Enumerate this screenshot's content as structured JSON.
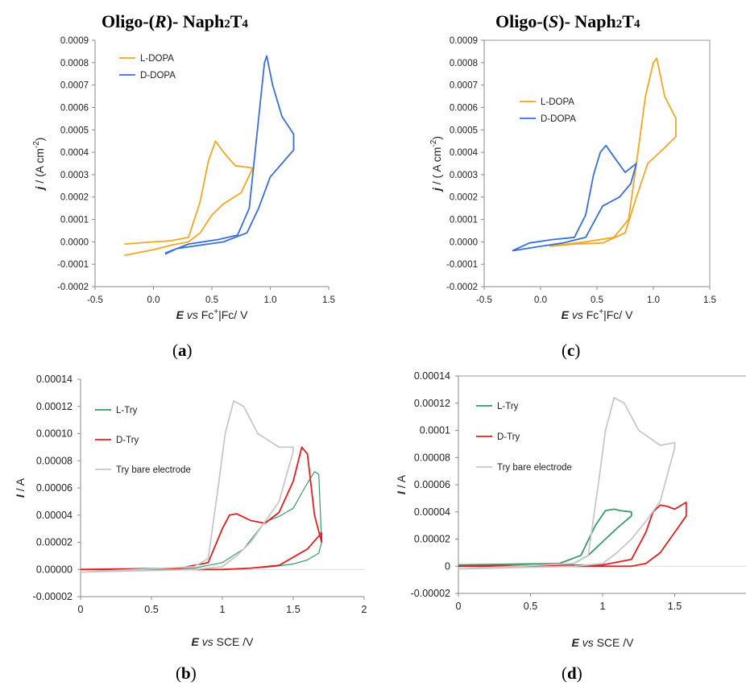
{
  "titles": {
    "a_prefix": "Oligo-(",
    "a_italic": "R",
    "a_mid": ")- Naph",
    "a_sub1": "2",
    "a_t": "T",
    "a_sub2": "4",
    "c_prefix": "Oligo-(",
    "c_italic": "S",
    "c_mid": ")- Naph",
    "c_sub1": "2",
    "c_t": "T",
    "c_sub2": "4"
  },
  "panel_labels": {
    "a": "a",
    "b": "b",
    "c": "c",
    "d": "d"
  },
  "colors": {
    "orange": "#f5a623",
    "blue": "#3a6fd8",
    "green": "#3a9a6a",
    "red": "#e02020",
    "gray": "#c8c8c8"
  },
  "chart_data": [
    {
      "id": "a",
      "type": "line",
      "xlim": [
        -0.5,
        1.5
      ],
      "ylim": [
        -0.0002,
        0.0009
      ],
      "xticks": [
        "-0.5",
        "0.0",
        "0.5",
        "1.0",
        "1.5"
      ],
      "yticks": [
        "-0.0002",
        "-0.0001",
        "0.0000",
        "0.0001",
        "0.0002",
        "0.0003",
        "0.0004",
        "0.0005",
        "0.0006",
        "0.0007",
        "0.0008",
        "0.0009"
      ],
      "xlabel": {
        "e": "E",
        "vs": "vs",
        "rest": "Fc",
        "sup": "+",
        "tail": "|Fc/ V"
      },
      "ylabel": {
        "j": "j",
        "rest": "/ (A cm",
        "sup": "-2",
        "tail": ")"
      },
      "series": [
        {
          "name": "L-DOPA",
          "color": "#f5a623",
          "x": [
            -0.25,
            -0.05,
            0.15,
            0.3,
            0.4,
            0.47,
            0.53,
            0.6,
            0.7,
            0.85,
            0.75,
            0.6,
            0.5,
            0.4,
            0.3,
            0.15,
            0.0,
            -0.25
          ],
          "y": [
            -1e-05,
            -2e-06,
            5e-06,
            2e-05,
            0.00018,
            0.00036,
            0.00045,
            0.0004,
            0.00034,
            0.00033,
            0.00022,
            0.00017,
            0.00012,
            4e-05,
            0.0,
            -1.5e-05,
            -3.5e-05,
            -6e-05
          ]
        },
        {
          "name": "D-DOPA",
          "color": "#3a6fd8",
          "x": [
            0.1,
            0.3,
            0.55,
            0.72,
            0.82,
            0.9,
            0.95,
            0.97,
            1.02,
            1.1,
            1.2,
            1.2,
            1.1,
            1.0,
            0.9,
            0.8,
            0.6,
            0.4,
            0.2,
            0.1
          ],
          "y": [
            -5e-05,
            -1e-05,
            1e-05,
            3e-05,
            0.00015,
            0.00055,
            0.0008,
            0.00083,
            0.0007,
            0.00056,
            0.00048,
            0.00041,
            0.00035,
            0.00029,
            0.00015,
            4e-05,
            0.0,
            -1.5e-05,
            -3e-05,
            -5.5e-05
          ]
        }
      ]
    },
    {
      "id": "c",
      "type": "line",
      "xlim": [
        -0.5,
        1.5
      ],
      "ylim": [
        -0.0002,
        0.0009
      ],
      "xticks": [
        "-0.5",
        "0.0",
        "0.5",
        "1.0",
        "1.5"
      ],
      "yticks": [
        "-0.0002",
        "-0.0001",
        "0.0000",
        "0.0001",
        "0.0002",
        "0.0003",
        "0.0004",
        "0.0005",
        "0.0006",
        "0.0007",
        "0.0008",
        "0.0009"
      ],
      "xlabel": {
        "e": "E",
        "vs": "vs",
        "rest": "Fc",
        "sup": "+",
        "tail": "|Fc/ V"
      },
      "ylabel": {
        "j": "j",
        "rest": "/ ( A cm",
        "sup": "-2",
        "tail": ")"
      },
      "series": [
        {
          "name": "L-DOPA",
          "color": "#f5a623",
          "x": [
            0.08,
            0.4,
            0.65,
            0.78,
            0.85,
            0.93,
            1.0,
            1.03,
            1.1,
            1.2,
            1.2,
            1.1,
            0.95,
            0.85,
            0.75,
            0.55,
            0.3,
            0.08
          ],
          "y": [
            -2e-05,
            0.0,
            2e-05,
            0.0001,
            0.00035,
            0.00065,
            0.0008,
            0.00082,
            0.00065,
            0.00055,
            0.00047,
            0.00042,
            0.00035,
            0.0002,
            4e-05,
            -5e-06,
            -1e-05,
            -2e-05
          ]
        },
        {
          "name": "D-DOPA",
          "color": "#3a6fd8",
          "x": [
            -0.25,
            -0.1,
            0.1,
            0.3,
            0.4,
            0.47,
            0.53,
            0.58,
            0.65,
            0.75,
            0.85,
            0.8,
            0.7,
            0.55,
            0.4,
            0.2,
            0.0,
            -0.25
          ],
          "y": [
            -4e-05,
            -5e-06,
            1e-05,
            2e-05,
            0.00012,
            0.0003,
            0.0004,
            0.00043,
            0.00038,
            0.00031,
            0.00035,
            0.00026,
            0.0002,
            0.00016,
            2e-05,
            -5e-06,
            -2e-05,
            -4e-05
          ]
        }
      ]
    },
    {
      "id": "b",
      "type": "line",
      "xlim": [
        0,
        2
      ],
      "ylim": [
        -2e-05,
        0.00014
      ],
      "xticks": [
        "0",
        "0.5",
        "1",
        "1.5",
        "2"
      ],
      "yticks": [
        "-0.00002",
        "0.00000",
        "0.00002",
        "0.00004",
        "0.00006",
        "0.00008",
        "0.00010",
        "0.00012",
        "0.00014"
      ],
      "xlabel": {
        "e": "E",
        "vs": "vs",
        "rest": "SCE /V",
        "sup": "",
        "tail": ""
      },
      "ylabel": {
        "j": "I",
        "rest": "/ A",
        "sup": "",
        "tail": ""
      },
      "series": [
        {
          "name": "L-Try",
          "color": "#3a9a6a",
          "x": [
            0.0,
            0.8,
            1.0,
            1.15,
            1.3,
            1.4,
            1.5,
            1.58,
            1.65,
            1.68,
            1.7,
            1.68,
            1.6,
            1.5,
            1.35,
            1.2,
            1.0
          ],
          "y": [
            0.0,
            1e-06,
            5e-06,
            1.5e-05,
            3.5e-05,
            3.9e-05,
            4.5e-05,
            6e-05,
            7.2e-05,
            7e-05,
            2e-05,
            1.2e-05,
            7e-06,
            4e-06,
            2e-06,
            1e-06,
            0.0
          ]
        },
        {
          "name": "D-Try",
          "color": "#e02020",
          "x": [
            0.0,
            0.7,
            0.9,
            1.0,
            1.05,
            1.1,
            1.2,
            1.3,
            1.4,
            1.5,
            1.56,
            1.6,
            1.65,
            1.7,
            1.7,
            1.6,
            1.4,
            1.2,
            1.0,
            0.5,
            0.0
          ],
          "y": [
            0.0,
            1e-06,
            5e-06,
            3e-05,
            4e-05,
            4.1e-05,
            3.6e-05,
            3.4e-05,
            4.2e-05,
            6.5e-05,
            9e-05,
            8.5e-05,
            4e-05,
            2e-05,
            2.7e-05,
            1.5e-05,
            3e-06,
            1e-06,
            0.0,
            0.0,
            0.0
          ]
        },
        {
          "name": "Try bare electrode",
          "color": "#c8c8c8",
          "x": [
            0.0,
            0.8,
            0.9,
            0.97,
            1.02,
            1.08,
            1.15,
            1.25,
            1.4,
            1.5,
            1.5,
            1.4,
            1.3,
            1.2,
            1.1,
            1.0,
            0.8,
            0.0
          ],
          "y": [
            -2e-06,
            2e-06,
            8e-06,
            6e-05,
            0.0001,
            0.000124,
            0.00012,
            0.0001,
            9e-05,
            9e-05,
            8.7e-05,
            5e-05,
            3.5e-05,
            2e-05,
            1e-05,
            2e-06,
            0.0,
            -2e-06
          ]
        }
      ]
    },
    {
      "id": "d",
      "type": "line",
      "xlim": [
        0,
        2
      ],
      "ylim": [
        -2e-05,
        0.00014
      ],
      "xticks": [
        "0",
        "0.5",
        "1",
        "1.5"
      ],
      "yticks": [
        "-0.00002",
        "0",
        "0.00002",
        "0.00004",
        "0.00006",
        "0.00008",
        "0.0001",
        "0.00012",
        "0.00014"
      ],
      "xlabel": {
        "e": "E",
        "vs": "vs",
        "rest": "SCE /V",
        "sup": "",
        "tail": ""
      },
      "ylabel": {
        "j": "I",
        "rest": "/ A",
        "sup": "",
        "tail": ""
      },
      "series": [
        {
          "name": "L-Try",
          "color": "#3a9a6a",
          "x": [
            0.0,
            0.7,
            0.85,
            0.95,
            1.02,
            1.08,
            1.12,
            1.2,
            1.2,
            1.1,
            1.0,
            0.9,
            0.8,
            0.5,
            0.0
          ],
          "y": [
            1e-06,
            2e-06,
            8e-06,
            3e-05,
            4.1e-05,
            4.2e-05,
            4.1e-05,
            4e-05,
            3.7e-05,
            2.8e-05,
            1.8e-05,
            8e-06,
            2e-06,
            0.0,
            1e-06
          ]
        },
        {
          "name": "D-Try",
          "color": "#e02020",
          "x": [
            0.0,
            1.0,
            1.2,
            1.3,
            1.35,
            1.4,
            1.45,
            1.5,
            1.58,
            1.58,
            1.5,
            1.4,
            1.3,
            1.2,
            1.0,
            0.0
          ],
          "y": [
            0.0,
            1e-06,
            5e-06,
            2.5e-05,
            4e-05,
            4.5e-05,
            4.4e-05,
            4.2e-05,
            4.7e-05,
            3.7e-05,
            2.5e-05,
            1e-05,
            2e-06,
            0.0,
            0.0,
            0.0
          ]
        },
        {
          "name": "Try bare electrode",
          "color": "#c8c8c8",
          "x": [
            0.0,
            0.8,
            0.9,
            0.97,
            1.02,
            1.08,
            1.15,
            1.25,
            1.4,
            1.5,
            1.5,
            1.4,
            1.3,
            1.2,
            1.1,
            1.0,
            0.8,
            0.0
          ],
          "y": [
            -2e-06,
            2e-06,
            8e-06,
            6e-05,
            0.0001,
            0.000124,
            0.00012,
            0.0001,
            8.9e-05,
            9.1e-05,
            8.7e-05,
            4.8e-05,
            3.3e-05,
            2e-05,
            1e-05,
            2e-06,
            0.0,
            -2e-06
          ]
        }
      ]
    }
  ]
}
